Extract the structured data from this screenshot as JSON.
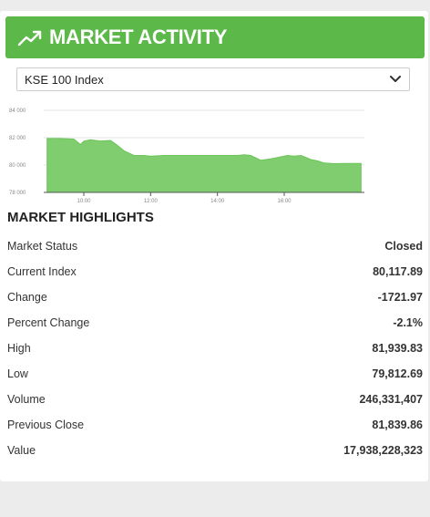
{
  "header": {
    "title": "MARKET ACTIVITY",
    "icon": "trending-up-icon",
    "color": "#5cb848"
  },
  "index_select": {
    "selected": "KSE 100 Index"
  },
  "chart_data": {
    "type": "area",
    "color": "#7fcd6e",
    "y_ticks": [
      "84 000",
      "82 000",
      "80 000",
      "78 000"
    ],
    "x_ticks": [
      "10:00",
      "12:00",
      "14:00",
      "16:00"
    ],
    "ylim": [
      78000,
      84000
    ],
    "xlim": [
      8.8,
      18.4
    ],
    "grid": true,
    "x": [
      8.9,
      9.3,
      9.7,
      9.9,
      10.0,
      10.2,
      10.5,
      10.8,
      11.0,
      11.2,
      11.5,
      11.8,
      12.0,
      12.4,
      12.8,
      13.2,
      13.6,
      14.0,
      14.4,
      14.6,
      14.8,
      15.0,
      15.3,
      15.6,
      15.9,
      16.1,
      16.3,
      16.5,
      16.7,
      16.8,
      17.0,
      17.2,
      17.5,
      17.8,
      18.1,
      18.3
    ],
    "y": [
      81939,
      81939,
      81900,
      81500,
      81750,
      81850,
      81750,
      81800,
      81450,
      81050,
      80700,
      80700,
      80650,
      80700,
      80700,
      80700,
      80700,
      80700,
      80700,
      80700,
      80750,
      80700,
      80350,
      80450,
      80600,
      80700,
      80650,
      80700,
      80500,
      80400,
      80300,
      80150,
      80100,
      80110,
      80110,
      80117
    ]
  },
  "highlights": {
    "title": "MARKET HIGHLIGHTS",
    "rows": [
      {
        "label": "Market Status",
        "value": "Closed"
      },
      {
        "label": "Current Index",
        "value": "80,117.89"
      },
      {
        "label": "Change",
        "value": "-1721.97"
      },
      {
        "label": "Percent Change",
        "value": "-2.1%"
      },
      {
        "label": "High",
        "value": "81,939.83"
      },
      {
        "label": "Low",
        "value": "79,812.69"
      },
      {
        "label": "Volume",
        "value": "246,331,407"
      },
      {
        "label": "Previous Close",
        "value": "81,839.86"
      },
      {
        "label": "Value",
        "value": "17,938,228,323"
      }
    ]
  }
}
